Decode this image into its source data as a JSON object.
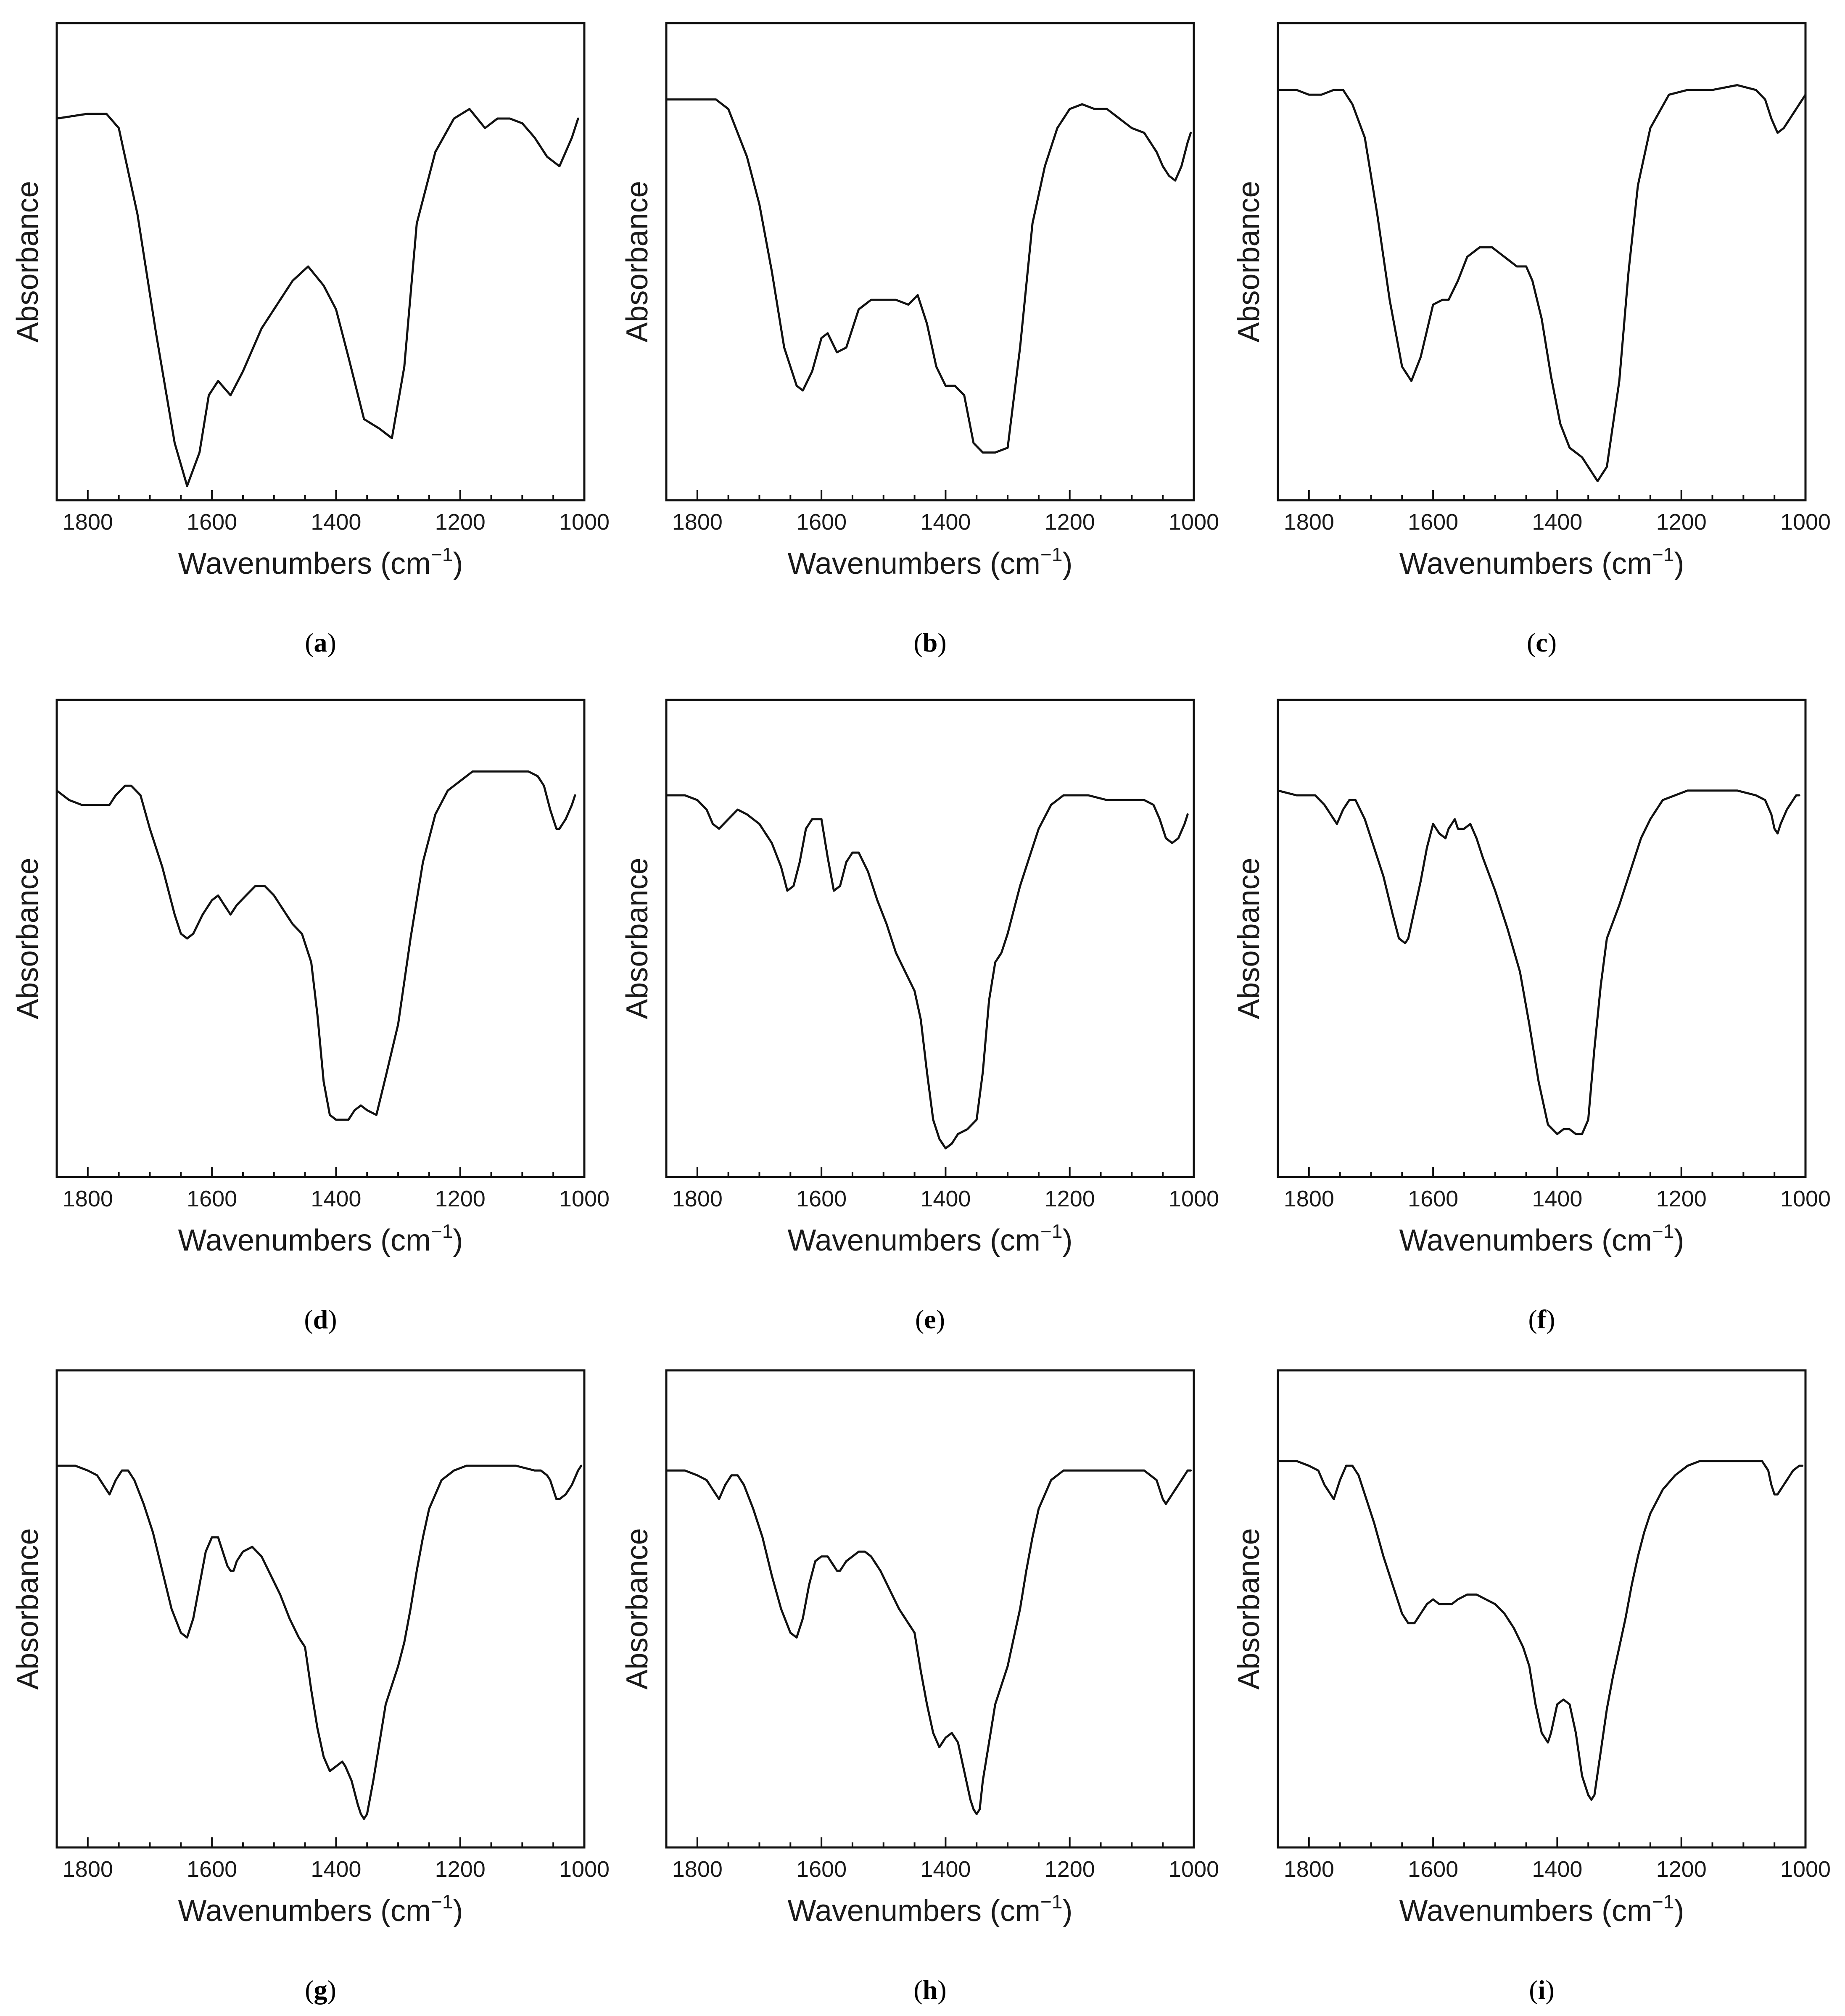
{
  "colors": {
    "line": "#111111",
    "frame": "#111111",
    "text": "#1a1a1a"
  },
  "chart_data": [
    {
      "type": "line",
      "panel": "a",
      "caption_open": "(",
      "caption_label": "a",
      "caption_close": ")",
      "xlabel": "Wavenumbers (cm",
      "xlabel_sup": "−1",
      "xlabel_close": ")",
      "ylabel": "Absorbance",
      "xlim": [
        1850,
        1000
      ],
      "ylim": [
        0,
        100
      ],
      "xticks": [
        "1800",
        "1600",
        "1400",
        "1200",
        "1000"
      ],
      "yticks": [],
      "x": [
        1850,
        1800,
        1770,
        1750,
        1720,
        1690,
        1660,
        1640,
        1620,
        1605,
        1590,
        1570,
        1550,
        1520,
        1490,
        1470,
        1445,
        1420,
        1400,
        1380,
        1355,
        1330,
        1310,
        1290,
        1270,
        1240,
        1210,
        1185,
        1160,
        1140,
        1120,
        1100,
        1080,
        1060,
        1040,
        1020,
        1010
      ],
      "y": [
        80,
        81,
        81,
        78,
        60,
        35,
        12,
        3,
        10,
        22,
        25,
        22,
        27,
        36,
        42,
        46,
        49,
        45,
        40,
        30,
        17,
        15,
        13,
        28,
        58,
        73,
        80,
        82,
        78,
        80,
        80,
        79,
        76,
        72,
        70,
        76,
        80
      ]
    },
    {
      "type": "line",
      "panel": "b",
      "caption_open": "(",
      "caption_label": "b",
      "caption_close": ")",
      "xlabel": "Wavenumbers (cm",
      "xlabel_sup": "−1",
      "xlabel_close": ")",
      "ylabel": "Absorbance",
      "xlim": [
        1850,
        1000
      ],
      "ylim": [
        0,
        100
      ],
      "xticks": [
        "1800",
        "1600",
        "1400",
        "1200",
        "1000"
      ],
      "yticks": [],
      "x": [
        1850,
        1800,
        1770,
        1750,
        1720,
        1700,
        1680,
        1660,
        1640,
        1630,
        1615,
        1600,
        1590,
        1575,
        1560,
        1540,
        1520,
        1500,
        1480,
        1460,
        1445,
        1430,
        1415,
        1400,
        1385,
        1370,
        1355,
        1340,
        1320,
        1300,
        1280,
        1260,
        1240,
        1220,
        1200,
        1180,
        1160,
        1140,
        1120,
        1100,
        1080,
        1060,
        1050,
        1040,
        1030,
        1020,
        1010,
        1005
      ],
      "y": [
        84,
        84,
        84,
        82,
        72,
        62,
        48,
        32,
        24,
        23,
        27,
        34,
        35,
        31,
        32,
        40,
        42,
        42,
        42,
        41,
        43,
        37,
        28,
        24,
        24,
        22,
        12,
        10,
        10,
        11,
        32,
        58,
        70,
        78,
        82,
        83,
        82,
        82,
        80,
        78,
        77,
        73,
        70,
        68,
        67,
        70,
        75,
        77
      ]
    },
    {
      "type": "line",
      "panel": "c",
      "caption_open": "(",
      "caption_label": "c",
      "caption_close": ")",
      "xlabel": "Wavenumbers (cm",
      "xlabel_sup": "−1",
      "xlabel_close": ")",
      "ylabel": "Absorbance",
      "xlim": [
        1850,
        1000
      ],
      "ylim": [
        0,
        100
      ],
      "xticks": [
        "1800",
        "1600",
        "1400",
        "1200",
        "1000"
      ],
      "yticks": [],
      "x": [
        1850,
        1820,
        1800,
        1780,
        1760,
        1745,
        1730,
        1710,
        1690,
        1670,
        1650,
        1635,
        1620,
        1600,
        1585,
        1575,
        1560,
        1545,
        1525,
        1505,
        1485,
        1465,
        1450,
        1440,
        1425,
        1410,
        1395,
        1380,
        1370,
        1360,
        1345,
        1335,
        1320,
        1300,
        1285,
        1270,
        1250,
        1220,
        1190,
        1150,
        1110,
        1080,
        1065,
        1055,
        1045,
        1035,
        1020,
        1010,
        1000
      ],
      "y": [
        86,
        86,
        85,
        85,
        86,
        86,
        83,
        76,
        60,
        42,
        28,
        25,
        30,
        41,
        42,
        42,
        46,
        51,
        53,
        53,
        51,
        49,
        49,
        46,
        38,
        26,
        16,
        11,
        10,
        9,
        6,
        4,
        7,
        25,
        48,
        66,
        78,
        85,
        86,
        86,
        87,
        86,
        84,
        80,
        77,
        78,
        81,
        83,
        85
      ]
    },
    {
      "type": "line",
      "panel": "d",
      "caption_open": "(",
      "caption_label": "d",
      "caption_close": ")",
      "xlabel": "Wavenumbers (cm",
      "xlabel_sup": "−1",
      "xlabel_close": ")",
      "ylabel": "Absorbance",
      "xlim": [
        1850,
        1000
      ],
      "ylim": [
        0,
        100
      ],
      "xticks": [
        "1800",
        "1600",
        "1400",
        "1200",
        "1000"
      ],
      "yticks": [],
      "x": [
        1850,
        1830,
        1810,
        1790,
        1775,
        1765,
        1755,
        1740,
        1730,
        1715,
        1700,
        1680,
        1660,
        1650,
        1640,
        1630,
        1615,
        1600,
        1590,
        1580,
        1570,
        1560,
        1545,
        1530,
        1515,
        1500,
        1485,
        1470,
        1455,
        1440,
        1430,
        1420,
        1410,
        1400,
        1390,
        1380,
        1370,
        1360,
        1350,
        1335,
        1320,
        1300,
        1280,
        1260,
        1240,
        1220,
        1200,
        1180,
        1150,
        1120,
        1090,
        1075,
        1065,
        1055,
        1045,
        1040,
        1030,
        1020,
        1015
      ],
      "y": [
        81,
        79,
        78,
        78,
        78,
        78,
        80,
        82,
        82,
        80,
        73,
        65,
        55,
        51,
        50,
        51,
        55,
        58,
        59,
        57,
        55,
        57,
        59,
        61,
        61,
        59,
        56,
        53,
        51,
        45,
        34,
        20,
        13,
        12,
        12,
        12,
        14,
        15,
        14,
        13,
        21,
        32,
        50,
        66,
        76,
        81,
        83,
        85,
        85,
        85,
        85,
        84,
        82,
        77,
        73,
        73,
        75,
        78,
        80
      ]
    },
    {
      "type": "line",
      "panel": "e",
      "caption_open": "(",
      "caption_label": "e",
      "caption_close": ")",
      "xlabel": "Wavenumbers (cm",
      "xlabel_sup": "−1",
      "xlabel_close": ")",
      "ylabel": "Absorbance",
      "xlim": [
        1850,
        1000
      ],
      "ylim": [
        0,
        100
      ],
      "xticks": [
        "1800",
        "1600",
        "1400",
        "1200",
        "1000"
      ],
      "yticks": [],
      "x": [
        1850,
        1820,
        1800,
        1785,
        1775,
        1765,
        1750,
        1735,
        1720,
        1700,
        1680,
        1665,
        1655,
        1645,
        1635,
        1625,
        1615,
        1600,
        1590,
        1580,
        1570,
        1560,
        1550,
        1540,
        1525,
        1510,
        1495,
        1480,
        1465,
        1450,
        1440,
        1430,
        1420,
        1410,
        1400,
        1390,
        1380,
        1365,
        1350,
        1340,
        1330,
        1320,
        1310,
        1300,
        1290,
        1280,
        1265,
        1250,
        1230,
        1210,
        1190,
        1170,
        1140,
        1110,
        1080,
        1065,
        1055,
        1045,
        1035,
        1025,
        1015,
        1010
      ],
      "y": [
        80,
        80,
        79,
        77,
        74,
        73,
        75,
        77,
        76,
        74,
        70,
        65,
        60,
        61,
        66,
        73,
        75,
        75,
        67,
        60,
        61,
        66,
        68,
        68,
        64,
        58,
        53,
        47,
        43,
        39,
        33,
        22,
        12,
        8,
        6,
        7,
        9,
        10,
        12,
        22,
        37,
        45,
        47,
        51,
        56,
        61,
        67,
        73,
        78,
        80,
        80,
        80,
        79,
        79,
        79,
        78,
        75,
        71,
        70,
        71,
        74,
        76
      ]
    },
    {
      "type": "line",
      "panel": "f",
      "caption_open": "(",
      "caption_label": "f",
      "caption_close": ")",
      "xlabel": "Wavenumbers (cm",
      "xlabel_sup": "−1",
      "xlabel_close": ")",
      "ylabel": "Absorbance",
      "xlim": [
        1850,
        1000
      ],
      "ylim": [
        0,
        100
      ],
      "xticks": [
        "1800",
        "1600",
        "1400",
        "1200",
        "1000"
      ],
      "yticks": [],
      "x": [
        1850,
        1820,
        1790,
        1775,
        1765,
        1755,
        1745,
        1735,
        1725,
        1710,
        1695,
        1680,
        1665,
        1655,
        1645,
        1640,
        1630,
        1620,
        1610,
        1600,
        1590,
        1580,
        1575,
        1565,
        1560,
        1550,
        1540,
        1530,
        1520,
        1500,
        1480,
        1460,
        1445,
        1430,
        1415,
        1400,
        1390,
        1380,
        1370,
        1360,
        1350,
        1340,
        1330,
        1320,
        1300,
        1280,
        1265,
        1250,
        1230,
        1210,
        1190,
        1170,
        1140,
        1110,
        1080,
        1065,
        1055,
        1050,
        1045,
        1040,
        1030,
        1020,
        1015,
        1010
      ],
      "y": [
        81,
        80,
        80,
        78,
        76,
        74,
        77,
        79,
        79,
        75,
        69,
        63,
        55,
        50,
        49,
        50,
        56,
        62,
        69,
        74,
        72,
        71,
        73,
        75,
        73,
        73,
        74,
        71,
        67,
        60,
        52,
        43,
        32,
        20,
        11,
        9,
        10,
        10,
        9,
        9,
        12,
        27,
        40,
        50,
        57,
        65,
        71,
        75,
        79,
        80,
        81,
        81,
        81,
        81,
        80,
        79,
        76,
        73,
        72,
        74,
        77,
        79,
        80,
        80
      ]
    },
    {
      "type": "line",
      "panel": "g",
      "caption_open": "(",
      "caption_label": "g",
      "caption_close": ")",
      "xlabel": "Wavenumbers (cm",
      "xlabel_sup": "−1",
      "xlabel_close": ")",
      "ylabel": "Absorbance",
      "xlim": [
        1850,
        1000
      ],
      "ylim": [
        0,
        100
      ],
      "xticks": [
        "1800",
        "1600",
        "1400",
        "1200",
        "1000"
      ],
      "yticks": [],
      "x": [
        1850,
        1820,
        1800,
        1785,
        1775,
        1765,
        1755,
        1745,
        1735,
        1725,
        1710,
        1695,
        1680,
        1665,
        1650,
        1640,
        1630,
        1620,
        1610,
        1600,
        1590,
        1580,
        1575,
        1570,
        1565,
        1560,
        1550,
        1535,
        1520,
        1505,
        1490,
        1475,
        1460,
        1450,
        1440,
        1430,
        1420,
        1410,
        1400,
        1390,
        1385,
        1375,
        1365,
        1360,
        1355,
        1350,
        1340,
        1330,
        1320,
        1310,
        1300,
        1290,
        1280,
        1270,
        1260,
        1250,
        1230,
        1210,
        1190,
        1170,
        1140,
        1110,
        1080,
        1070,
        1060,
        1055,
        1050,
        1045,
        1040,
        1030,
        1020,
        1010,
        1005
      ],
      "y": [
        80,
        80,
        79,
        78,
        76,
        74,
        77,
        79,
        79,
        77,
        72,
        66,
        58,
        50,
        45,
        44,
        48,
        55,
        62,
        65,
        65,
        61,
        59,
        58,
        58,
        60,
        62,
        63,
        61,
        57,
        53,
        48,
        44,
        42,
        33,
        25,
        19,
        16,
        17,
        18,
        17,
        14,
        9,
        7,
        6,
        7,
        14,
        22,
        30,
        34,
        38,
        43,
        50,
        58,
        65,
        71,
        77,
        79,
        80,
        80,
        80,
        80,
        79,
        79,
        78,
        77,
        75,
        73,
        73,
        74,
        76,
        79,
        80
      ]
    },
    {
      "type": "line",
      "panel": "h",
      "caption_open": "(",
      "caption_label": "h",
      "caption_close": ")",
      "xlabel": "Wavenumbers (cm",
      "xlabel_sup": "−1",
      "xlabel_close": ")",
      "ylabel": "Absorbance",
      "xlim": [
        1850,
        1000
      ],
      "ylim": [
        0,
        100
      ],
      "xticks": [
        "1800",
        "1600",
        "1400",
        "1200",
        "1000"
      ],
      "yticks": [],
      "x": [
        1850,
        1820,
        1800,
        1785,
        1775,
        1765,
        1755,
        1745,
        1735,
        1725,
        1710,
        1695,
        1680,
        1665,
        1650,
        1640,
        1630,
        1620,
        1610,
        1600,
        1590,
        1580,
        1575,
        1570,
        1565,
        1560,
        1550,
        1540,
        1530,
        1520,
        1505,
        1490,
        1475,
        1460,
        1450,
        1440,
        1430,
        1420,
        1410,
        1400,
        1390,
        1380,
        1370,
        1360,
        1355,
        1350,
        1345,
        1340,
        1330,
        1320,
        1310,
        1300,
        1290,
        1280,
        1270,
        1260,
        1250,
        1230,
        1210,
        1190,
        1170,
        1140,
        1110,
        1080,
        1070,
        1060,
        1055,
        1050,
        1045,
        1040,
        1030,
        1020,
        1010,
        1005
      ],
      "y": [
        79,
        79,
        78,
        77,
        75,
        73,
        76,
        78,
        78,
        76,
        71,
        65,
        57,
        50,
        45,
        44,
        48,
        55,
        60,
        61,
        61,
        59,
        58,
        58,
        59,
        60,
        61,
        62,
        62,
        61,
        58,
        54,
        50,
        47,
        45,
        37,
        30,
        24,
        21,
        23,
        24,
        22,
        16,
        10,
        8,
        7,
        8,
        14,
        22,
        30,
        34,
        38,
        44,
        50,
        58,
        65,
        71,
        77,
        79,
        79,
        79,
        79,
        79,
        79,
        78,
        77,
        75,
        73,
        72,
        73,
        75,
        77,
        79,
        79
      ]
    },
    {
      "type": "line",
      "panel": "i",
      "caption_open": "(",
      "caption_label": "i",
      "caption_close": ")",
      "xlabel": "Wavenumbers (cm",
      "xlabel_sup": "−1",
      "xlabel_close": ")",
      "ylabel": "Absorbance",
      "xlim": [
        1850,
        1000
      ],
      "ylim": [
        0,
        100
      ],
      "xticks": [
        "1800",
        "1600",
        "1400",
        "1200",
        "1000"
      ],
      "yticks": [],
      "x": [
        1850,
        1820,
        1800,
        1785,
        1775,
        1765,
        1760,
        1750,
        1740,
        1730,
        1720,
        1710,
        1695,
        1680,
        1665,
        1650,
        1640,
        1630,
        1620,
        1610,
        1600,
        1590,
        1580,
        1570,
        1560,
        1545,
        1530,
        1515,
        1500,
        1485,
        1470,
        1455,
        1445,
        1435,
        1425,
        1415,
        1410,
        1400,
        1390,
        1380,
        1370,
        1360,
        1350,
        1345,
        1340,
        1330,
        1320,
        1310,
        1300,
        1290,
        1280,
        1270,
        1260,
        1250,
        1230,
        1210,
        1190,
        1170,
        1140,
        1110,
        1080,
        1070,
        1060,
        1055,
        1050,
        1045,
        1040,
        1030,
        1020,
        1010,
        1005
      ],
      "y": [
        81,
        81,
        80,
        79,
        76,
        74,
        73,
        77,
        80,
        80,
        78,
        74,
        68,
        61,
        55,
        49,
        47,
        47,
        49,
        51,
        52,
        51,
        51,
        51,
        52,
        53,
        53,
        52,
        51,
        49,
        46,
        42,
        38,
        30,
        24,
        22,
        24,
        30,
        31,
        30,
        24,
        15,
        11,
        10,
        11,
        20,
        29,
        36,
        42,
        48,
        55,
        61,
        66,
        70,
        75,
        78,
        80,
        81,
        81,
        81,
        81,
        81,
        79,
        76,
        74,
        74,
        75,
        77,
        79,
        80,
        80
      ]
    }
  ]
}
